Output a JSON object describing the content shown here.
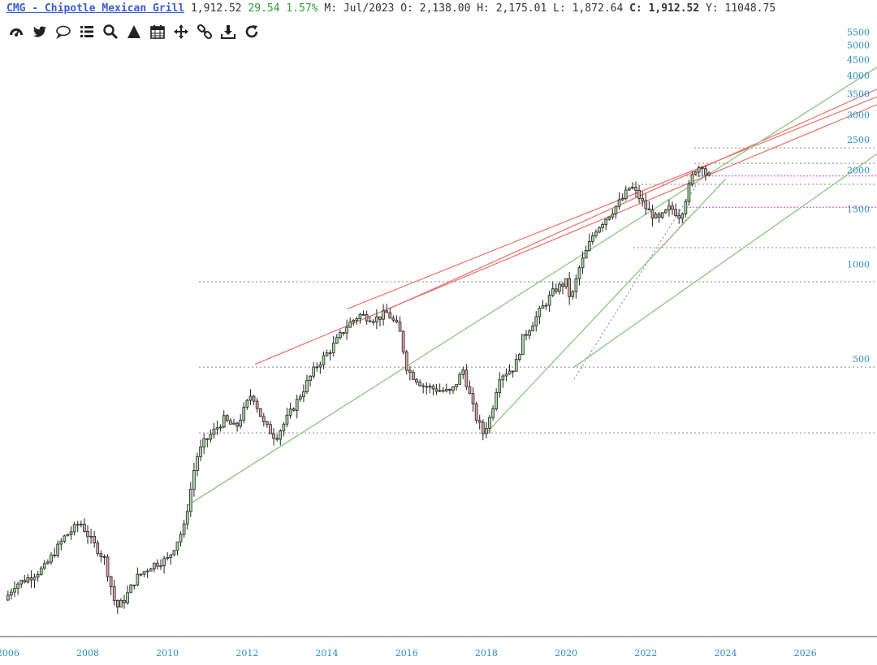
{
  "header": {
    "title": "CMG - Chipotle Mexican Grill",
    "last": "1,912.52",
    "change": "29.54",
    "change_pct": "1.57%",
    "period": "M: Jul/2023",
    "open_label": "O:",
    "open": "2,138.00",
    "high_label": "H:",
    "high": "2,175.01",
    "low_label": "L:",
    "low": "1,872.64",
    "close_label": "C:",
    "close": "1,912.52",
    "y_label": "Y:",
    "y": "11048.75"
  },
  "toolbar": [
    {
      "name": "dashboard-icon"
    },
    {
      "name": "twitter-icon"
    },
    {
      "name": "comment-icon"
    },
    {
      "name": "list-icon"
    },
    {
      "name": "search-icon"
    },
    {
      "name": "triangle-icon"
    },
    {
      "name": "calendar-icon"
    },
    {
      "name": "move-icon"
    },
    {
      "name": "link-icon"
    },
    {
      "name": "download-icon"
    },
    {
      "name": "refresh-icon"
    }
  ],
  "colors": {
    "up": "#a9dca4",
    "down": "#e3a3a3",
    "trend_red": "#e8706a",
    "trend_green": "#8cc57e",
    "level": "#888888",
    "magenta": "#d44ad4",
    "axis_label": "#2a8bc4"
  },
  "chart_data": {
    "type": "candlestick",
    "scale": "log",
    "x_range": [
      2005.8,
      2027.8
    ],
    "y_range": [
      65,
      6000
    ],
    "y_ticks": [
      500,
      1000,
      1500,
      2000,
      2500,
      3000,
      3500,
      4000,
      4500,
      5000,
      5500
    ],
    "x_ticks": [
      2006,
      2008,
      2010,
      2012,
      2014,
      2016,
      2018,
      2020,
      2022,
      2024,
      2026
    ],
    "path": [
      [
        2006.0,
        85
      ],
      [
        2006.25,
        95
      ],
      [
        2006.6,
        100
      ],
      [
        2007.0,
        108
      ],
      [
        2007.5,
        135
      ],
      [
        2007.9,
        150
      ],
      [
        2008.2,
        130
      ],
      [
        2008.5,
        115
      ],
      [
        2008.8,
        80
      ],
      [
        2009.0,
        85
      ],
      [
        2009.3,
        100
      ],
      [
        2009.7,
        110
      ],
      [
        2010.1,
        115
      ],
      [
        2010.5,
        145
      ],
      [
        2010.8,
        240
      ],
      [
        2011.0,
        270
      ],
      [
        2011.5,
        320
      ],
      [
        2011.8,
        300
      ],
      [
        2012.2,
        390
      ],
      [
        2012.5,
        310
      ],
      [
        2012.8,
        280
      ],
      [
        2013.3,
        360
      ],
      [
        2013.8,
        470
      ],
      [
        2014.2,
        540
      ],
      [
        2014.6,
        640
      ],
      [
        2014.9,
        690
      ],
      [
        2015.3,
        670
      ],
      [
        2015.6,
        700
      ],
      [
        2015.9,
        620
      ],
      [
        2016.1,
        460
      ],
      [
        2016.5,
        410
      ],
      [
        2016.8,
        400
      ],
      [
        2017.2,
        390
      ],
      [
        2017.5,
        460
      ],
      [
        2017.8,
        330
      ],
      [
        2018.0,
        290
      ],
      [
        2018.2,
        330
      ],
      [
        2018.4,
        440
      ],
      [
        2018.8,
        470
      ],
      [
        2019.0,
        580
      ],
      [
        2019.4,
        700
      ],
      [
        2019.8,
        830
      ],
      [
        2020.1,
        880
      ],
      [
        2020.2,
        760
      ],
      [
        2020.4,
        960
      ],
      [
        2020.8,
        1280
      ],
      [
        2021.2,
        1460
      ],
      [
        2021.5,
        1620
      ],
      [
        2021.7,
        1780
      ],
      [
        2021.9,
        1650
      ],
      [
        2022.1,
        1500
      ],
      [
        2022.4,
        1380
      ],
      [
        2022.7,
        1520
      ],
      [
        2022.95,
        1420
      ],
      [
        2023.1,
        1650
      ],
      [
        2023.3,
        2000
      ],
      [
        2023.5,
        2080
      ],
      [
        2023.6,
        1912.52
      ]
    ],
    "trendlines_red": [
      [
        [
          2012.2,
          480
        ],
        [
          2027.8,
          3230
        ]
      ],
      [
        [
          2014.5,
          720
        ],
        [
          2027.8,
          3420
        ]
      ],
      [
        [
          2015.6,
          725
        ],
        [
          2027.8,
          3620
        ]
      ]
    ],
    "trendlines_green": [
      [
        [
          2010.5,
          170
        ],
        [
          2027.8,
          4250
        ]
      ],
      [
        [
          2018.0,
          290
        ],
        [
          2024.0,
          1870
        ]
      ],
      [
        [
          2020.2,
          470
        ],
        [
          2027.8,
          2250
        ]
      ]
    ],
    "dotted_red": [
      [
        2022.4,
        1130
      ],
      [
        2023.1,
        1430
      ]
    ],
    "dotted_blue": [
      [
        2020.2,
        430
      ],
      [
        2023.3,
        1820
      ]
    ],
    "levels_gray": [
      2350,
      2100,
      1800,
      1130,
      880,
      470,
      290
    ],
    "levels_magenta": [
      1912.52,
      1520
    ]
  }
}
